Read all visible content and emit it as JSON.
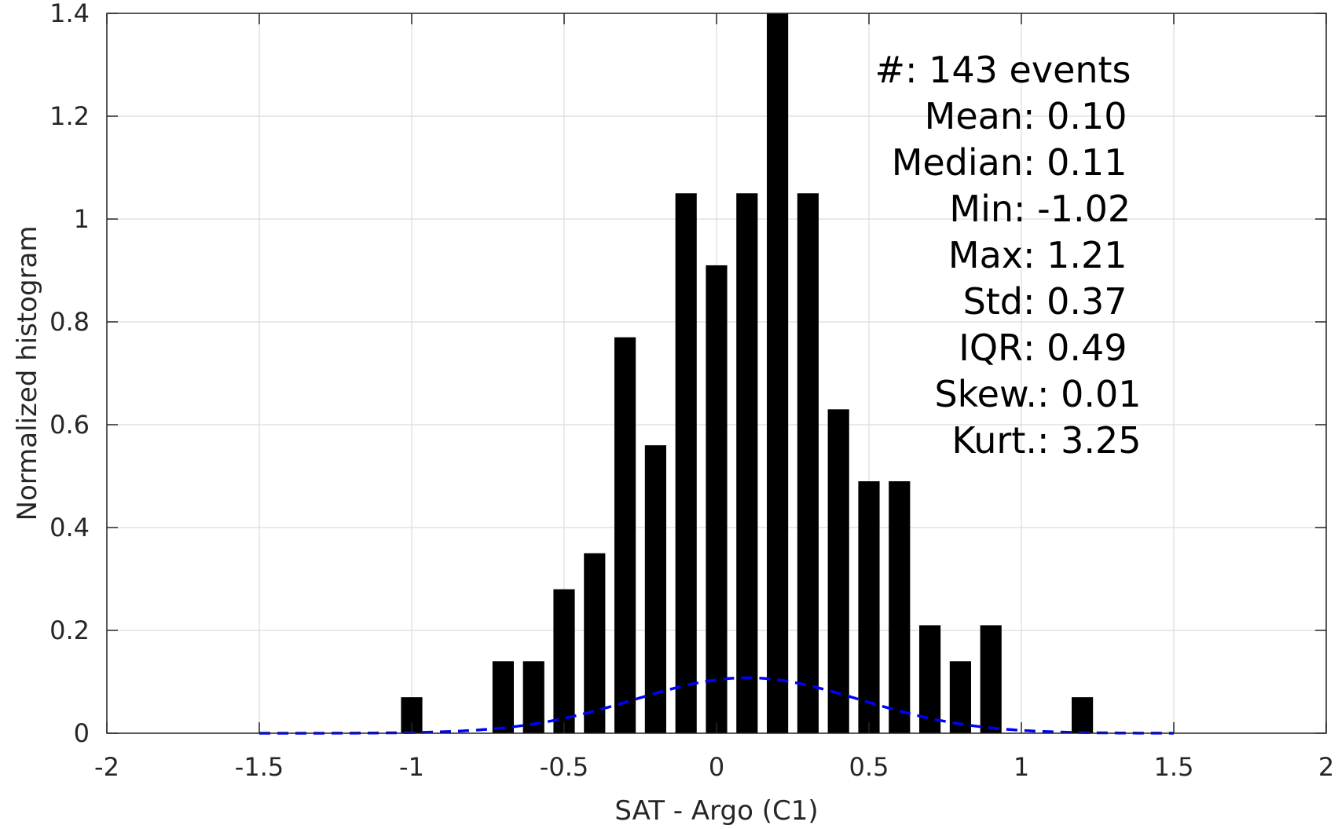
{
  "chart_data": {
    "type": "bar",
    "xlabel": "SAT - Argo (C1)",
    "ylabel": "Normalized histogram",
    "xlim": [
      -2,
      2
    ],
    "ylim": [
      0,
      1.4
    ],
    "xticks": [
      -2,
      -1.5,
      -1,
      -0.5,
      0,
      0.5,
      1,
      1.5,
      2
    ],
    "xtick_labels": [
      "-2",
      "-1.5",
      "-1",
      "-0.5",
      "0",
      "0.5",
      "1",
      "1.5",
      "2"
    ],
    "yticks": [
      0,
      0.2,
      0.4,
      0.6,
      0.8,
      1,
      1.2,
      1.4
    ],
    "ytick_labels": [
      "0",
      "0.2",
      "0.4",
      "0.6",
      "0.8",
      "1",
      "1.2",
      "1.4"
    ],
    "grid": true,
    "bar_width": 0.07,
    "bars": {
      "x": [
        -1.0,
        -0.7,
        -0.6,
        -0.5,
        -0.4,
        -0.3,
        -0.2,
        -0.1,
        0.0,
        0.1,
        0.2,
        0.3,
        0.4,
        0.5,
        0.6,
        0.7,
        0.8,
        0.9,
        1.2
      ],
      "values": [
        0.07,
        0.14,
        0.14,
        0.28,
        0.35,
        0.77,
        0.56,
        1.05,
        0.91,
        1.05,
        1.4,
        1.05,
        0.63,
        0.49,
        0.49,
        0.21,
        0.14,
        0.21,
        0.07
      ],
      "color": "#000000"
    },
    "fit_curve": {
      "style": "dashed",
      "color": "#0000ff",
      "mean": 0.1,
      "std": 0.37,
      "x_range": [
        -1.5,
        1.5
      ]
    },
    "annotations": [
      {
        "label": "#  ",
        "value": ": 143 events"
      },
      {
        "label": "Mean ",
        "value": ": 0.10"
      },
      {
        "label": "Median ",
        "value": ": 0.11"
      },
      {
        "label": "Min ",
        "value": ": -1.02"
      },
      {
        "label": "Max ",
        "value": ": 1.21"
      },
      {
        "label": "Std ",
        "value": ": 0.37"
      },
      {
        "label": "IQR ",
        "value": ": 0.49"
      },
      {
        "label": "Skew. ",
        "value": ": 0.01"
      },
      {
        "label": "Kurt. ",
        "value": ": 3.25"
      }
    ]
  }
}
